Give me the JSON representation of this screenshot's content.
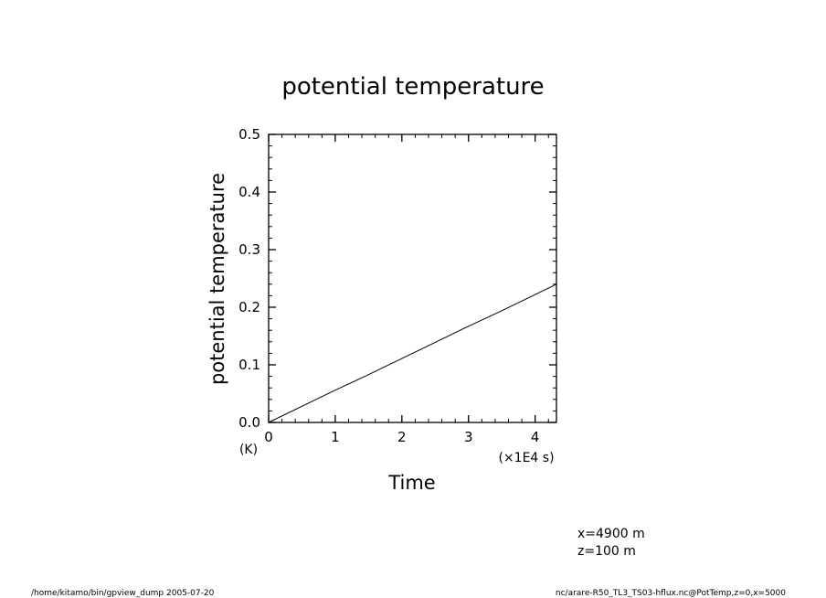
{
  "chart_data": {
    "type": "line",
    "title": "potential temperature",
    "ylabel": "potential temperature",
    "yunit": "(K)",
    "xlabel": "Time",
    "xunit": "(×1E4 s)",
    "xlim": [
      0,
      4.32
    ],
    "ylim": [
      0,
      0.5
    ],
    "xticks": [
      {
        "v": 0,
        "label": "0"
      },
      {
        "v": 1,
        "label": "1"
      },
      {
        "v": 2,
        "label": "2"
      },
      {
        "v": 3,
        "label": "3"
      },
      {
        "v": 4,
        "label": "4"
      }
    ],
    "yticks": [
      {
        "v": 0,
        "label": "0.0"
      },
      {
        "v": 0.1,
        "label": "0.1"
      },
      {
        "v": 0.2,
        "label": "0.2"
      },
      {
        "v": 0.3,
        "label": "0.3"
      },
      {
        "v": 0.4,
        "label": "0.4"
      },
      {
        "v": 0.5,
        "label": "0.5"
      }
    ],
    "x_minor_step": 0.2,
    "y_minor_step": 0.02,
    "grid": false,
    "series": [
      {
        "x": [
          0,
          0.5,
          1,
          1.5,
          2,
          2.5,
          3,
          3.5,
          4,
          4.32
        ],
        "values": [
          0,
          0.028,
          0.056,
          0.083,
          0.111,
          0.139,
          0.167,
          0.194,
          0.222,
          0.24
        ]
      }
    ]
  },
  "annotations": {
    "coord_x": "x=4900  m",
    "coord_z": "z=100  m"
  },
  "footer": {
    "left": "/home/kitamo/bin/gpview_dump   2005-07-20",
    "right": "nc/arare-R50_TL3_TS03-hflux.nc@PotTemp,z=0,x=5000"
  }
}
